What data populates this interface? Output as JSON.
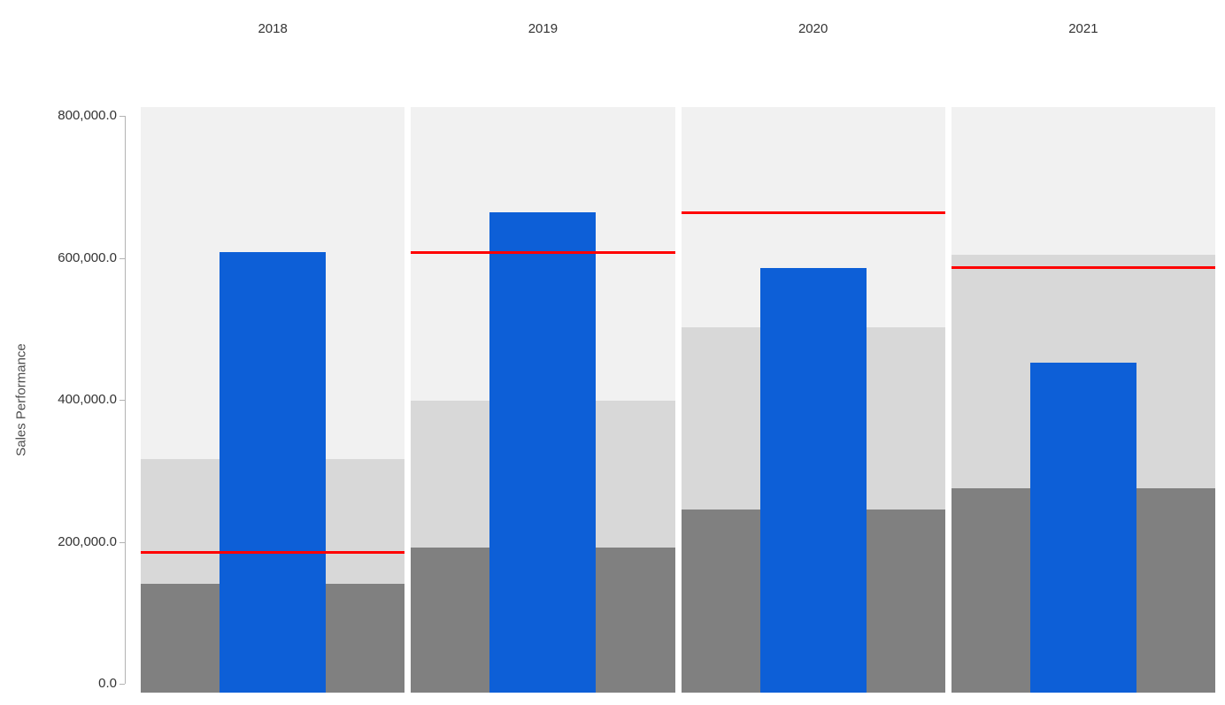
{
  "page": {
    "background": "#ffffff"
  },
  "chart_data": {
    "type": "bar",
    "variant": "bullet-chart-small-multiples",
    "title": "",
    "ylabel": "Sales Performance",
    "xlabel": "",
    "ylim": [
      0,
      800000
    ],
    "ytick_values": [
      0,
      200000,
      400000,
      600000,
      800000
    ],
    "ytick_labels": [
      "0.0",
      "200,000.0",
      "400,000.0",
      "600,000.0",
      "800,000.0"
    ],
    "categories": [
      "2018",
      "2019",
      "2020",
      "2021"
    ],
    "series": [
      {
        "name": "actual_sales_bar",
        "role": "bar",
        "color": "#0d5fd7",
        "values": [
          608000,
          664000,
          586000,
          452000
        ]
      },
      {
        "name": "target_line",
        "role": "reference-line",
        "color": "#ff0000",
        "values": [
          185000,
          608000,
          664000,
          586000
        ]
      },
      {
        "name": "range_band_dark_max",
        "role": "background-band",
        "color": "#808080",
        "values": [
          141000,
          192000,
          245000,
          275000
        ]
      },
      {
        "name": "range_band_medium_max",
        "role": "background-band",
        "color": "#d8d8d8",
        "values": [
          317000,
          399000,
          502000,
          604000
        ]
      },
      {
        "name": "range_band_light_max",
        "role": "background-band",
        "color": "#f1f1f1",
        "values": [
          812000,
          812000,
          812000,
          812000
        ]
      }
    ],
    "legend": "none",
    "grid": "off",
    "axis_color": "#b3b3b3",
    "tick_label_color": "#333333",
    "category_label_color": "#333333",
    "ylabel_color": "#4d4d4d"
  }
}
